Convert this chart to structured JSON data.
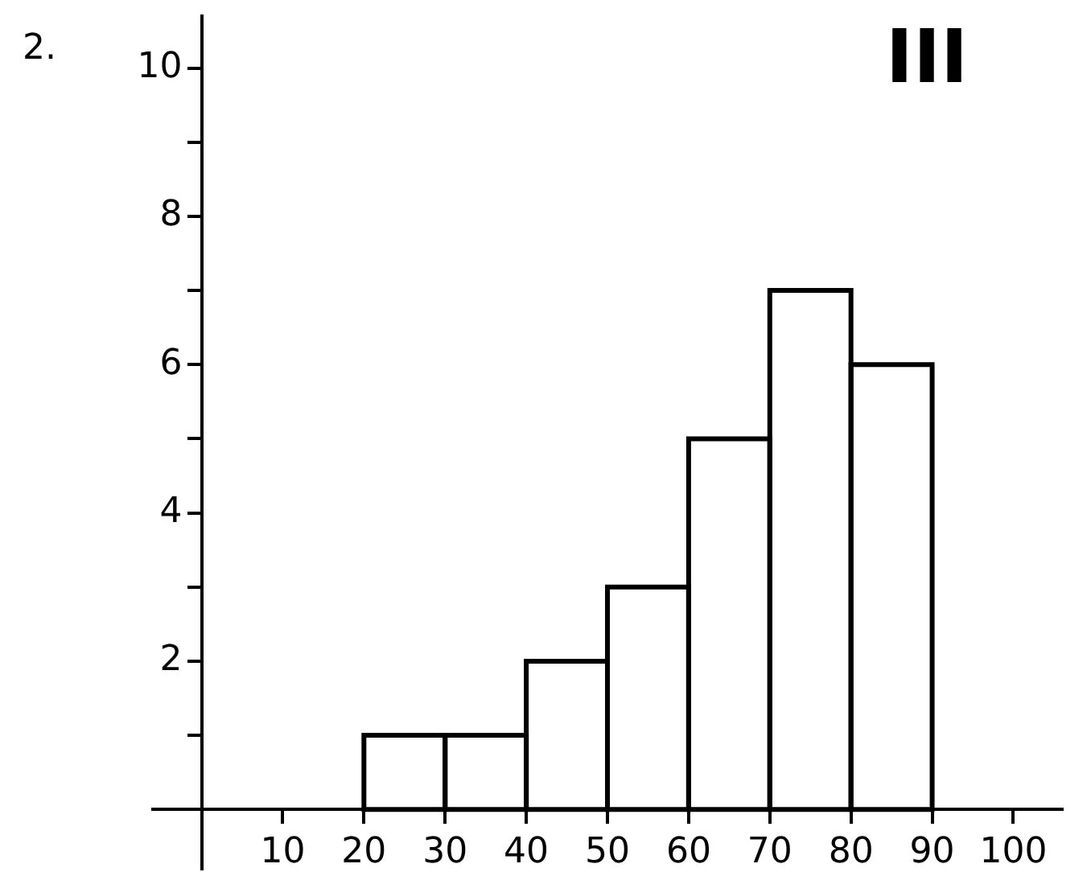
{
  "chart_data": {
    "type": "histogram",
    "bins": [
      20,
      30,
      40,
      50,
      60,
      70,
      80,
      90
    ],
    "values": [
      1,
      1,
      2,
      3,
      5,
      7,
      6
    ],
    "color": "#000000",
    "xlim": [
      -6,
      106
    ],
    "xticks": [
      10,
      20,
      30,
      40,
      50,
      60,
      70,
      80,
      90,
      100
    ],
    "ylim": [
      -0.8,
      10.7
    ],
    "yticks": [
      {
        "value": 1,
        "label": null
      },
      2,
      {
        "value": 3,
        "label": null
      },
      4,
      {
        "value": 5,
        "label": null
      },
      6,
      {
        "value": 7,
        "label": null
      },
      8,
      {
        "value": 9,
        "label": null
      },
      10
    ],
    "grid": false,
    "legend": false,
    "annotations": [
      "2.",
      "III"
    ]
  }
}
